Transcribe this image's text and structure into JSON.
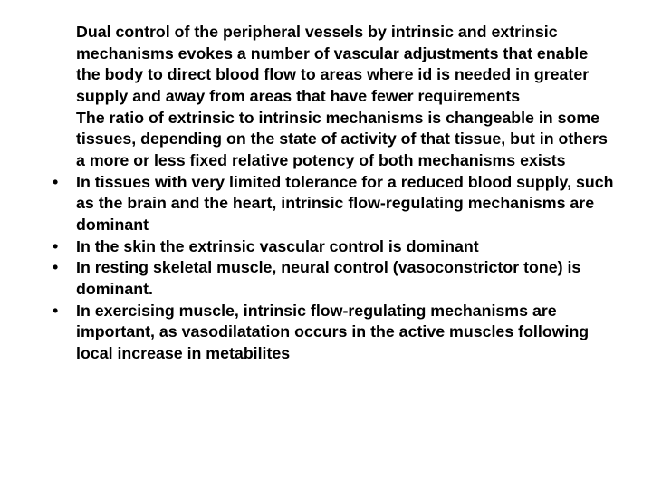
{
  "slide": {
    "text_color": "#000000",
    "background_color": "#ffffff",
    "font_family": "Arial",
    "font_weight": 700,
    "font_size_pt": 13.3,
    "items": [
      {
        "bulleted": false,
        "text": "Dual control of the peripheral vessels by intrinsic and extrinsic mechanisms evokes a number of vascular adjustments that enable the body to direct blood flow to areas where id is needed in greater supply and away from areas that have fewer requirements"
      },
      {
        "bulleted": false,
        "text": "The ratio of extrinsic to intrinsic mechanisms is changeable in some tissues, depending on the state of activity of that tissue, but in others a more or less fixed relative potency of both mechanisms exists"
      },
      {
        "bulleted": true,
        "text": "In tissues with very limited tolerance for a reduced blood supply, such as the brain and the heart, intrinsic flow-regulating mechanisms are dominant"
      },
      {
        "bulleted": true,
        "text": "In the skin the extrinsic vascular control is dominant"
      },
      {
        "bulleted": true,
        "text": "In resting skeletal muscle, neural control (vasoconstrictor tone) is dominant."
      },
      {
        "bulleted": true,
        "text": "In exercising muscle, intrinsic flow-regulating mechanisms are important, as vasodilatation occurs in the active muscles following local increase in metabilites"
      }
    ]
  }
}
